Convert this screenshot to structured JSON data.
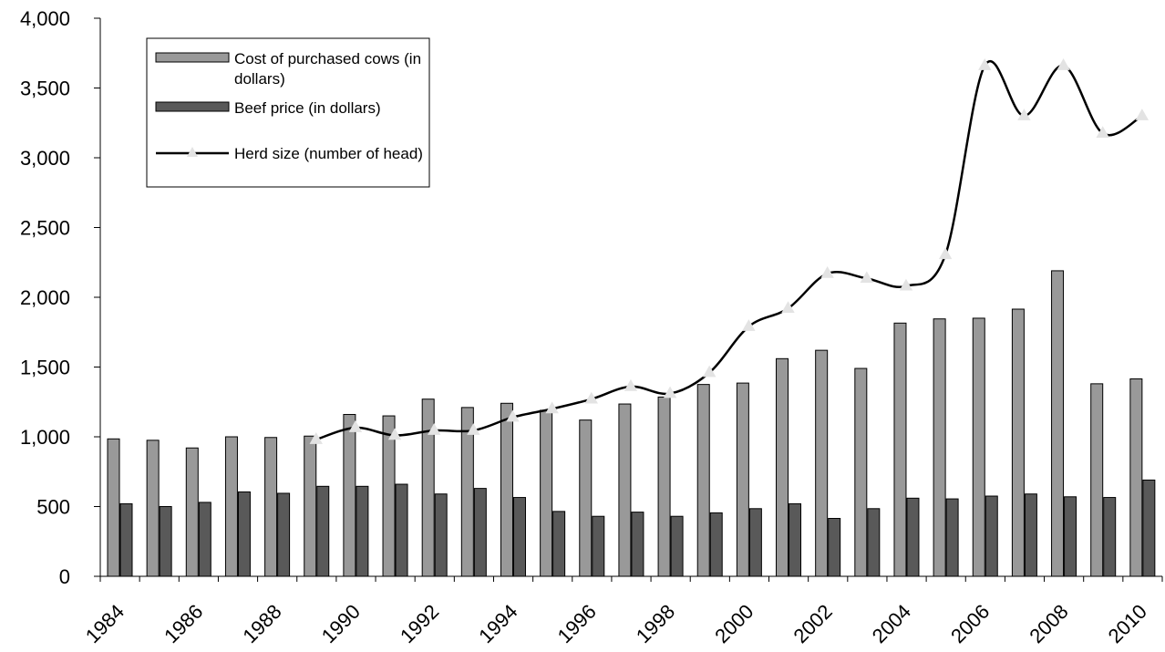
{
  "chart_data": {
    "type": "bar",
    "title": "",
    "xlabel": "",
    "ylabel": "",
    "ylim": [
      0,
      4000
    ],
    "yticks": [
      "0",
      "500",
      "1,000",
      "1,500",
      "2,000",
      "2,500",
      "3,000",
      "3,500",
      "4,000"
    ],
    "categories": [
      "1984",
      "1985",
      "1986",
      "1987",
      "1988",
      "1989",
      "1990",
      "1991",
      "1992",
      "1993",
      "1994",
      "1995",
      "1996",
      "1997",
      "1998",
      "1999",
      "2000",
      "2001",
      "2002",
      "2003",
      "2004",
      "2005",
      "2006",
      "2007",
      "2008",
      "2009",
      "2010"
    ],
    "xtick_labels": [
      "1984",
      "1986",
      "1988",
      "1990",
      "1992",
      "1994",
      "1996",
      "1998",
      "2000",
      "2002",
      "2004",
      "2006",
      "2008",
      "2010"
    ],
    "series": [
      {
        "name": "Cost of purchased cows (in dollars)",
        "kind": "bar",
        "color": "#999999",
        "values": [
          985,
          975,
          920,
          1000,
          995,
          1005,
          1160,
          1150,
          1270,
          1210,
          1240,
          1190,
          1120,
          1235,
          1285,
          1375,
          1385,
          1560,
          1620,
          1490,
          1815,
          1845,
          1850,
          1915,
          2190,
          1380,
          1415
        ]
      },
      {
        "name": "Beef price (in dollars)",
        "kind": "bar",
        "color": "#595959",
        "values": [
          520,
          500,
          530,
          605,
          595,
          645,
          645,
          660,
          590,
          630,
          565,
          465,
          430,
          460,
          430,
          455,
          485,
          520,
          415,
          485,
          560,
          555,
          575,
          590,
          570,
          565,
          690
        ]
      },
      {
        "name": "Herd size (number of head)",
        "kind": "line",
        "color": "#000000",
        "marker_color": "#e3e3e3",
        "values": [
          null,
          null,
          null,
          null,
          null,
          980,
          1065,
          1010,
          1045,
          1045,
          1140,
          1200,
          1270,
          1360,
          1310,
          1460,
          1790,
          1920,
          2170,
          2135,
          2080,
          2305,
          3660,
          3300,
          3660,
          3175,
          3300
        ]
      }
    ],
    "legend": {
      "placement": "top-left",
      "entries": [
        [
          "Cost of purchased cows (in",
          "dollars)"
        ],
        [
          "Beef price (in dollars)"
        ],
        [
          "Herd size (number of head)"
        ]
      ]
    },
    "grid": false
  }
}
